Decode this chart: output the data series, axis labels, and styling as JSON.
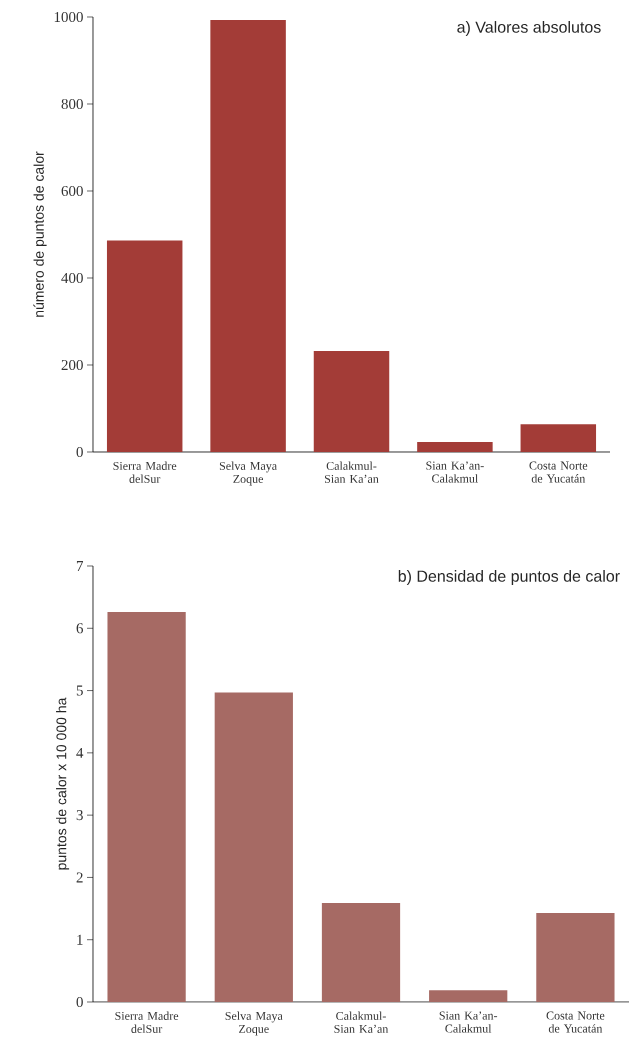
{
  "chart_data": [
    {
      "type": "bar",
      "title": "a) Valores absolutos",
      "ylabel": "número de puntos de calor",
      "categories": [
        "Sierra Madre delSur",
        "Selva Maya Zoque",
        "Calakmul-Sian Ka’an",
        "Sian Ka’an-Calakmul",
        "Costa Norte de Yucatán"
      ],
      "values": [
        486,
        993,
        232,
        23,
        64
      ],
      "color": "#a33c37",
      "ylim": [
        0,
        1000
      ],
      "yticks": [
        0,
        200,
        400,
        600,
        800,
        1000
      ]
    },
    {
      "type": "bar",
      "title": "b) Densidad de puntos de calor",
      "ylabel": "puntos de calor x 10 000 ha",
      "categories": [
        "Sierra Madre delSur",
        "Selva Maya Zoque",
        "Calakmul-Sian Ka’an",
        "Sian Ka’an-Calakmul",
        "Costa Norte de Yucatán"
      ],
      "values": [
        6.26,
        4.97,
        1.59,
        0.19,
        1.43
      ],
      "color": "#a66a64",
      "ylim": [
        0,
        7
      ],
      "yticks": [
        0,
        1,
        2,
        3,
        4,
        5,
        6,
        7
      ]
    }
  ]
}
